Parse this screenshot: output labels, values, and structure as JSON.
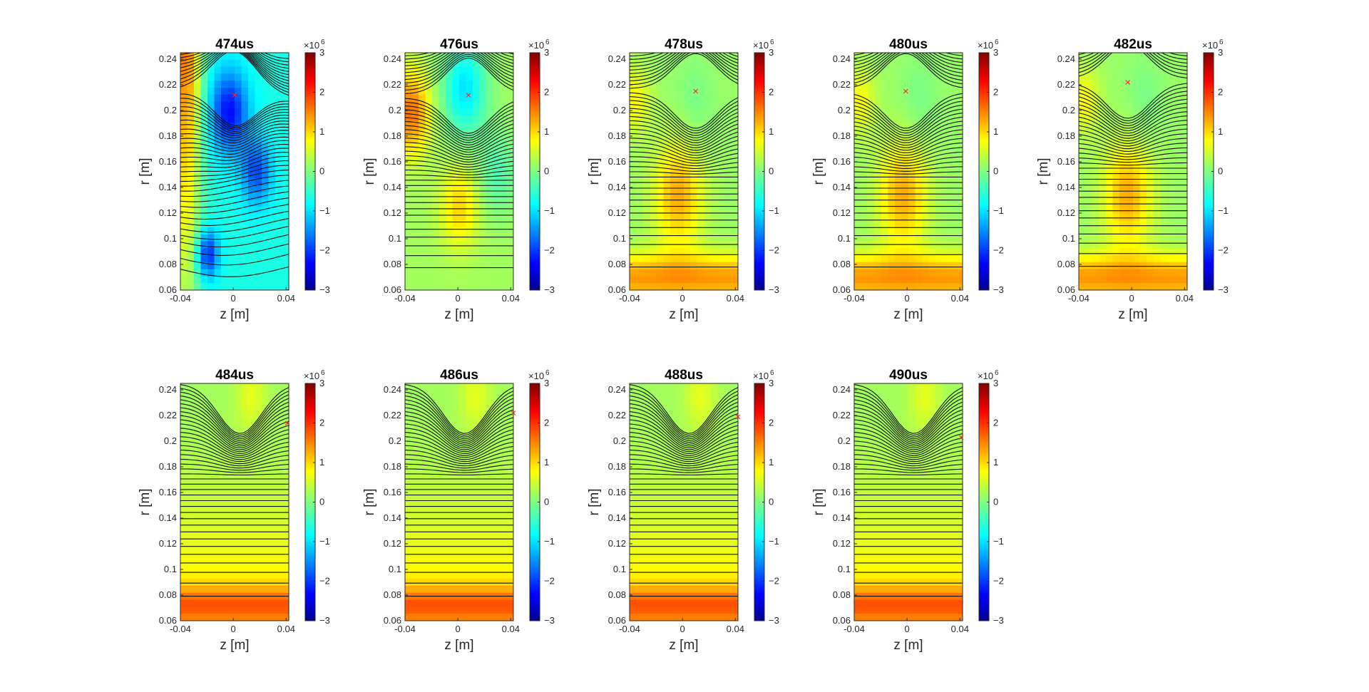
{
  "chart_data": {
    "type": "heatmap",
    "layout": "small-multiples",
    "xlabel": "z [m]",
    "ylabel": "r [m]",
    "xlim": [
      -0.04,
      0.042
    ],
    "ylim": [
      0.06,
      0.245
    ],
    "xticks": [
      -0.04,
      0,
      0.04
    ],
    "xtick_labels": [
      "-0.04",
      "0",
      "0.04"
    ],
    "yticks": [
      0.06,
      0.08,
      0.1,
      0.12,
      0.14,
      0.16,
      0.18,
      0.2,
      0.22,
      0.24
    ],
    "ytick_labels": [
      "0.06",
      "0.08",
      "0.1",
      "0.12",
      "0.14",
      "0.16",
      "0.18",
      "0.2",
      "0.22",
      "0.24"
    ],
    "colorbar": {
      "min": -3,
      "max": 3,
      "ticks": [
        3,
        2,
        1,
        0,
        -1,
        -2,
        -3
      ],
      "tick_labels": [
        "3",
        "2",
        "1",
        "0",
        "−1",
        "−2",
        "−3"
      ],
      "multiplier_base": "×10",
      "multiplier_exp": "6",
      "colormap": "jet"
    },
    "marker": {
      "symbol": "×",
      "color": "#ff2020"
    },
    "panels": [
      {
        "title": "474us",
        "x_point": {
          "z": 0.001,
          "r": 0.212
        },
        "mean_field": -0.7,
        "contours": 48
      },
      {
        "title": "476us",
        "x_point": {
          "z": 0.008,
          "r": 0.212
        },
        "mean_field": 0.0,
        "contours": 46
      },
      {
        "title": "478us",
        "x_point": {
          "z": 0.01,
          "r": 0.215
        },
        "mean_field": 0.35,
        "contours": 44
      },
      {
        "title": "480us",
        "x_point": {
          "z": -0.001,
          "r": 0.215
        },
        "mean_field": 0.35,
        "contours": 44
      },
      {
        "title": "482us",
        "x_point": {
          "z": -0.003,
          "r": 0.222
        },
        "mean_field": 0.3,
        "contours": 42
      },
      {
        "title": "484us",
        "x_point": {
          "z": 0.041,
          "r": 0.214
        },
        "mean_field": 0.4,
        "contours": 40
      },
      {
        "title": "486us",
        "x_point": {
          "z": 0.042,
          "r": 0.222
        },
        "mean_field": 0.4,
        "contours": 40
      },
      {
        "title": "488us",
        "x_point": {
          "z": 0.042,
          "r": 0.219
        },
        "mean_field": 0.4,
        "contours": 40
      },
      {
        "title": "490us",
        "x_point": {
          "z": 0.041,
          "r": 0.203
        },
        "mean_field": 0.4,
        "contours": 40
      }
    ]
  }
}
